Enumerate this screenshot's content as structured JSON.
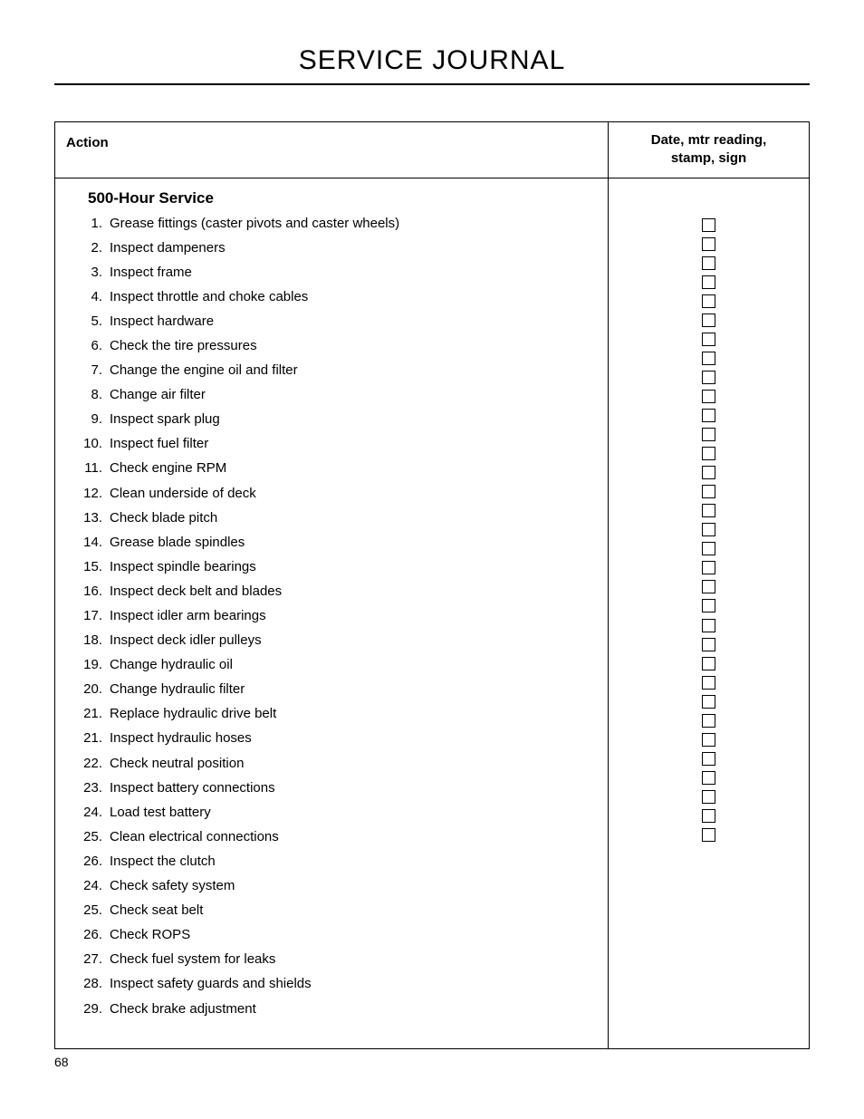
{
  "page_title": "SERVICE JOURNAL",
  "header": {
    "action_label": "Action",
    "date_label_line1": "Date, mtr reading,",
    "date_label_line2": "stamp, sign"
  },
  "section_heading": "500-Hour Service",
  "items": [
    {
      "num": "1.",
      "text": "Grease fittings (caster pivots and caster wheels)"
    },
    {
      "num": "2.",
      "text": "Inspect dampeners"
    },
    {
      "num": "3.",
      "text": "Inspect frame"
    },
    {
      "num": "4.",
      "text": "Inspect throttle and choke cables"
    },
    {
      "num": "5.",
      "text": "Inspect hardware"
    },
    {
      "num": "6.",
      "text": "Check the tire pressures"
    },
    {
      "num": "7.",
      "text": "Change the engine oil and filter"
    },
    {
      "num": "8.",
      "text": "Change air filter"
    },
    {
      "num": "9.",
      "text": "Inspect spark plug"
    },
    {
      "num": "10.",
      "text": "Inspect fuel filter"
    },
    {
      "num": "11.",
      "text": "Check engine RPM"
    },
    {
      "num": "12.",
      "text": "Clean underside of deck"
    },
    {
      "num": "13.",
      "text": "Check blade pitch"
    },
    {
      "num": "14.",
      "text": "Grease blade spindles"
    },
    {
      "num": "15.",
      "text": "Inspect spindle bearings"
    },
    {
      "num": "16.",
      "text": "Inspect deck belt and blades"
    },
    {
      "num": "17.",
      "text": "Inspect idler arm bearings"
    },
    {
      "num": "18.",
      "text": "Inspect deck idler pulleys"
    },
    {
      "num": "19.",
      "text": "Change hydraulic oil"
    },
    {
      "num": "20.",
      "text": "Change hydraulic filter"
    },
    {
      "num": "21.",
      "text": "Replace hydraulic drive belt"
    },
    {
      "num": "21.",
      "text": "Inspect hydraulic hoses"
    },
    {
      "num": "22.",
      "text": "Check neutral position"
    },
    {
      "num": "23.",
      "text": "Inspect battery connections"
    },
    {
      "num": "24.",
      "text": "Load test battery"
    },
    {
      "num": "25.",
      "text": "Clean electrical connections"
    },
    {
      "num": "26.",
      "text": "Inspect the clutch"
    },
    {
      "num": "24.",
      "text": "Check safety system"
    },
    {
      "num": "25.",
      "text": "Check seat belt"
    },
    {
      "num": "26.",
      "text": "Check ROPS"
    },
    {
      "num": "27.",
      "text": "Check fuel system for leaks"
    },
    {
      "num": "28.",
      "text": "Inspect safety guards and shields"
    },
    {
      "num": "29.",
      "text": "Check brake adjustment"
    }
  ],
  "page_number": "68"
}
